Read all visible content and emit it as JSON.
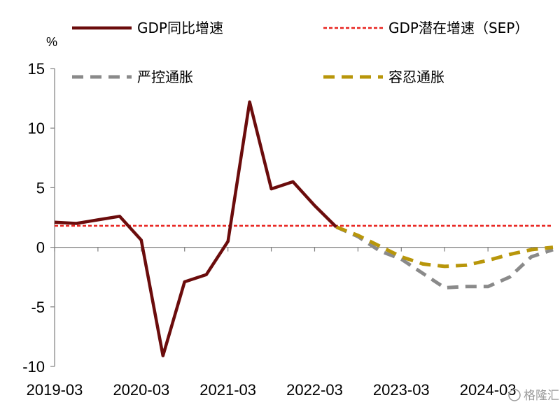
{
  "chart_data": {
    "type": "line",
    "unit": "%",
    "x": [
      "2019-03",
      "2019-06",
      "2019-09",
      "2019-12",
      "2020-03",
      "2020-06",
      "2020-09",
      "2020-12",
      "2021-03",
      "2021-06",
      "2021-09",
      "2021-12",
      "2022-03",
      "2022-06",
      "2022-09",
      "2022-12",
      "2023-03",
      "2023-06",
      "2023-09",
      "2023-12",
      "2024-03",
      "2024-06",
      "2024-09",
      "2024-12"
    ],
    "xticks": [
      "2019-03",
      "2020-03",
      "2021-03",
      "2022-03",
      "2023-03",
      "2024-03"
    ],
    "ylim": [
      -10,
      15
    ],
    "yticks": [
      -10,
      -5,
      0,
      5,
      10,
      15
    ],
    "series": [
      {
        "name": "GDP同比增速",
        "style": "solid",
        "color": "#6b0c0c",
        "points": [
          [
            "2019-03",
            2.1
          ],
          [
            "2019-06",
            2.0
          ],
          [
            "2019-09",
            2.3
          ],
          [
            "2019-12",
            2.6
          ],
          [
            "2020-03",
            0.6
          ],
          [
            "2020-06",
            -9.1
          ],
          [
            "2020-09",
            -2.9
          ],
          [
            "2020-12",
            -2.3
          ],
          [
            "2021-03",
            0.5
          ],
          [
            "2021-06",
            12.2
          ],
          [
            "2021-09",
            4.9
          ],
          [
            "2021-12",
            5.5
          ],
          [
            "2022-03",
            3.5
          ],
          [
            "2022-06",
            1.7
          ]
        ]
      },
      {
        "name": "GDP潜在增速（SEP）",
        "style": "dotted",
        "color": "#e8231f",
        "points": [
          [
            "2019-03",
            1.8
          ],
          [
            "2024-12",
            1.8
          ]
        ]
      },
      {
        "name": "严控通胀",
        "style": "dashed",
        "color": "#8a8a8a",
        "points": [
          [
            "2022-06",
            1.7
          ],
          [
            "2022-09",
            0.9
          ],
          [
            "2022-12",
            -0.3
          ],
          [
            "2023-03",
            -1.0
          ],
          [
            "2023-06",
            -2.2
          ],
          [
            "2023-09",
            -3.4
          ],
          [
            "2023-12",
            -3.3
          ],
          [
            "2024-03",
            -3.3
          ],
          [
            "2024-06",
            -2.5
          ],
          [
            "2024-09",
            -0.8
          ],
          [
            "2024-12",
            -0.2
          ]
        ]
      },
      {
        "name": "容忍通胀",
        "style": "dashed",
        "color": "#b8960a",
        "points": [
          [
            "2022-06",
            1.7
          ],
          [
            "2022-09",
            1.0
          ],
          [
            "2022-12",
            0.1
          ],
          [
            "2023-03",
            -0.8
          ],
          [
            "2023-06",
            -1.4
          ],
          [
            "2023-09",
            -1.6
          ],
          [
            "2023-12",
            -1.5
          ],
          [
            "2024-03",
            -1.1
          ],
          [
            "2024-06",
            -0.6
          ],
          [
            "2024-09",
            -0.2
          ],
          [
            "2024-12",
            0.0
          ]
        ]
      }
    ],
    "legend_position": "top",
    "grid": false
  },
  "watermark": "格隆汇"
}
